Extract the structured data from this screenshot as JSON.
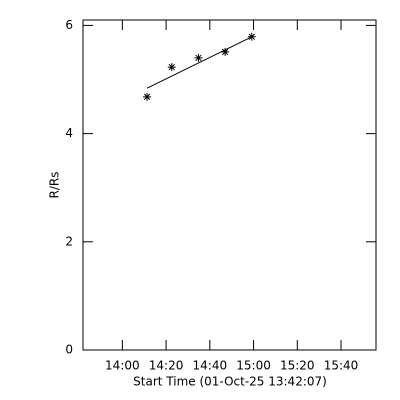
{
  "chart_data": {
    "type": "scatter",
    "x_label": "Start Time (01-Oct-25 13:42:07)",
    "y_label": "R/Rs",
    "xlim": [
      822,
      956
    ],
    "ylim": [
      0,
      6.1
    ],
    "xticks": [
      {
        "value": 840,
        "label": "14:00"
      },
      {
        "value": 860,
        "label": "14:20"
      },
      {
        "value": 880,
        "label": "14:40"
      },
      {
        "value": 900,
        "label": "15:00"
      },
      {
        "value": 920,
        "label": "15:20"
      },
      {
        "value": 940,
        "label": "15:40"
      }
    ],
    "yticks": [
      0,
      2,
      4,
      6
    ],
    "x": [
      851.3,
      862.6,
      874.8,
      887.0,
      899.2
    ],
    "values": [
      4.68,
      5.23,
      5.4,
      5.51,
      5.79
    ],
    "color": "#000000",
    "fit": {
      "x": [
        851.3,
        899.2
      ],
      "values": [
        4.84,
        5.79
      ]
    }
  }
}
